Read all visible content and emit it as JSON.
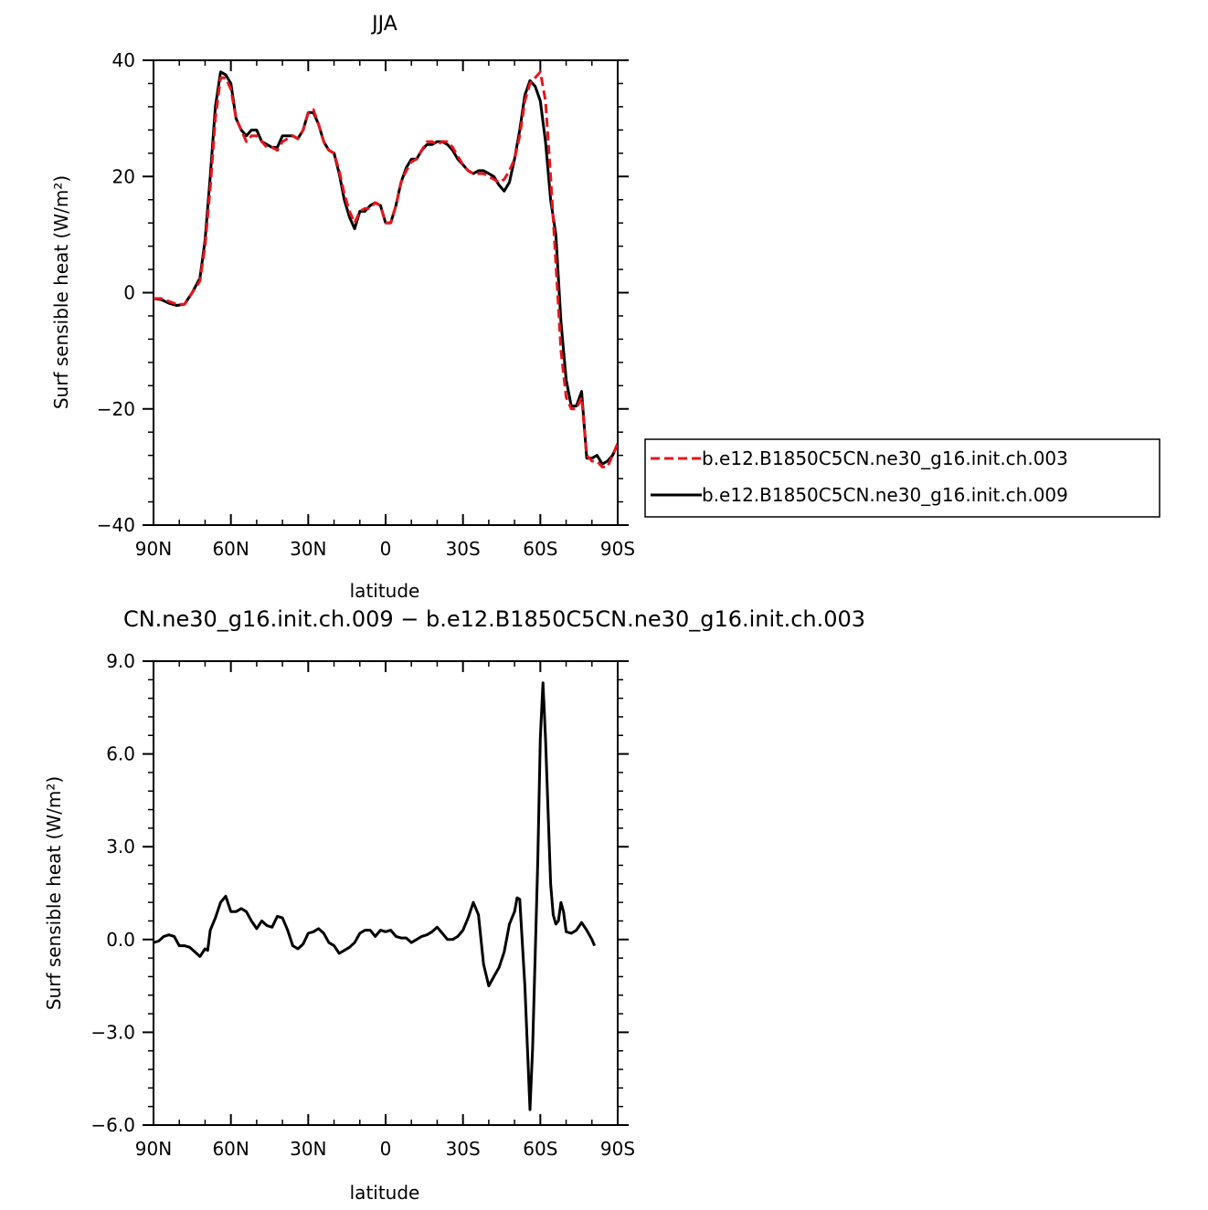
{
  "chart_data": [
    {
      "type": "line",
      "title": "JJA",
      "xlabel": "latitude",
      "ylabel": "Surf sensible heat (W/m²)",
      "xlim": [
        90,
        -90
      ],
      "ylim": [
        -40,
        40
      ],
      "x_ticks": [
        90,
        60,
        30,
        0,
        -30,
        -60,
        -90
      ],
      "x_tick_labels": [
        "90N",
        "60N",
        "30N",
        "0",
        "30S",
        "60S",
        "90S"
      ],
      "y_ticks": [
        -40,
        -20,
        0,
        20,
        40
      ],
      "y_tick_labels": [
        "−40",
        "−20",
        "0",
        "20",
        "40"
      ],
      "legend": {
        "placement": "right",
        "entries": [
          "b.e12.B1850C5CN.ne30_g16.init.ch.003",
          "b.e12.B1850C5CN.ne30_g16.init.ch.009"
        ]
      },
      "series": [
        {
          "name": "b.e12.B1850C5CN.ne30_g16.init.ch.003",
          "color": "#e8141b",
          "style": "dashed",
          "points": [
            [
              90,
              -1
            ],
            [
              87,
              -1
            ],
            [
              84,
              -1.5
            ],
            [
              81,
              -2
            ],
            [
              78,
              -2
            ],
            [
              75,
              0
            ],
            [
              72,
              2
            ],
            [
              70,
              8
            ],
            [
              68,
              18
            ],
            [
              66,
              30
            ],
            [
              64,
              37
            ],
            [
              62,
              37
            ],
            [
              60,
              35
            ],
            [
              58,
              30
            ],
            [
              56,
              28
            ],
            [
              54,
              26
            ],
            [
              52,
              27
            ],
            [
              50,
              27
            ],
            [
              48,
              26
            ],
            [
              46,
              25
            ],
            [
              44,
              25
            ],
            [
              42,
              24.5
            ],
            [
              40,
              26
            ],
            [
              38,
              26.5
            ],
            [
              36,
              27
            ],
            [
              34,
              26.5
            ],
            [
              32,
              28
            ],
            [
              30,
              31
            ],
            [
              28,
              31.5
            ],
            [
              26,
              29
            ],
            [
              24,
              26
            ],
            [
              22,
              24.5
            ],
            [
              20,
              24
            ],
            [
              18,
              21
            ],
            [
              16,
              17
            ],
            [
              14,
              14
            ],
            [
              12,
              12
            ],
            [
              10,
              14
            ],
            [
              8,
              14.5
            ],
            [
              6,
              14.5
            ],
            [
              4,
              15.5
            ],
            [
              2,
              15
            ],
            [
              0,
              12
            ],
            [
              -2,
              12
            ],
            [
              -4,
              15
            ],
            [
              -6,
              19
            ],
            [
              -8,
              21
            ],
            [
              -10,
              22.5
            ],
            [
              -12,
              23
            ],
            [
              -14,
              24.5
            ],
            [
              -16,
              26
            ],
            [
              -18,
              26
            ],
            [
              -20,
              25.5
            ],
            [
              -22,
              26
            ],
            [
              -24,
              26
            ],
            [
              -26,
              25
            ],
            [
              -28,
              23.5
            ],
            [
              -30,
              22
            ],
            [
              -32,
              21
            ],
            [
              -34,
              20.5
            ],
            [
              -36,
              20.5
            ],
            [
              -38,
              20.5
            ],
            [
              -40,
              20
            ],
            [
              -42,
              19.5
            ],
            [
              -44,
              19
            ],
            [
              -46,
              19.5
            ],
            [
              -48,
              21
            ],
            [
              -50,
              23
            ],
            [
              -52,
              27
            ],
            [
              -54,
              33
            ],
            [
              -56,
              36
            ],
            [
              -58,
              37
            ],
            [
              -60,
              38
            ],
            [
              -62,
              33
            ],
            [
              -64,
              20
            ],
            [
              -66,
              5
            ],
            [
              -68,
              -10
            ],
            [
              -70,
              -18
            ],
            [
              -72,
              -20
            ],
            [
              -74,
              -20
            ],
            [
              -76,
              -18
            ],
            [
              -78,
              -28
            ],
            [
              -80,
              -29
            ],
            [
              -82,
              -29
            ],
            [
              -84,
              -30
            ],
            [
              -86,
              -30
            ],
            [
              -88,
              -28
            ],
            [
              -90,
              -26
            ]
          ]
        },
        {
          "name": "b.e12.B1850C5CN.ne30_g16.init.ch.009",
          "color": "#000000",
          "style": "solid",
          "points": [
            [
              90,
              -1
            ],
            [
              87,
              -1.2
            ],
            [
              84,
              -1.8
            ],
            [
              81,
              -2.2
            ],
            [
              78,
              -2
            ],
            [
              75,
              0
            ],
            [
              72,
              2.5
            ],
            [
              70,
              9
            ],
            [
              68,
              20
            ],
            [
              66,
              32
            ],
            [
              64,
              38
            ],
            [
              62,
              37.5
            ],
            [
              60,
              36
            ],
            [
              58,
              30
            ],
            [
              56,
              28
            ],
            [
              54,
              27
            ],
            [
              52,
              28
            ],
            [
              50,
              28
            ],
            [
              48,
              26
            ],
            [
              46,
              25.5
            ],
            [
              44,
              25
            ],
            [
              42,
              25
            ],
            [
              40,
              27
            ],
            [
              38,
              27
            ],
            [
              36,
              27
            ],
            [
              34,
              26.5
            ],
            [
              32,
              28
            ],
            [
              30,
              31
            ],
            [
              28,
              31
            ],
            [
              26,
              29
            ],
            [
              24,
              26
            ],
            [
              22,
              24.5
            ],
            [
              20,
              24
            ],
            [
              18,
              20.5
            ],
            [
              16,
              16
            ],
            [
              14,
              13
            ],
            [
              12,
              11
            ],
            [
              10,
              14
            ],
            [
              8,
              14
            ],
            [
              6,
              15
            ],
            [
              4,
              15.5
            ],
            [
              2,
              15
            ],
            [
              0,
              12
            ],
            [
              -2,
              12
            ],
            [
              -4,
              15
            ],
            [
              -6,
              19
            ],
            [
              -8,
              21.5
            ],
            [
              -10,
              23
            ],
            [
              -12,
              23
            ],
            [
              -14,
              24.5
            ],
            [
              -16,
              25.5
            ],
            [
              -18,
              25.5
            ],
            [
              -20,
              26
            ],
            [
              -22,
              26
            ],
            [
              -24,
              25.5
            ],
            [
              -26,
              24.5
            ],
            [
              -28,
              23
            ],
            [
              -30,
              22
            ],
            [
              -32,
              21
            ],
            [
              -34,
              20.5
            ],
            [
              -36,
              21
            ],
            [
              -38,
              21
            ],
            [
              -40,
              20.5
            ],
            [
              -42,
              20
            ],
            [
              -44,
              18.5
            ],
            [
              -46,
              17.5
            ],
            [
              -48,
              19
            ],
            [
              -50,
              23
            ],
            [
              -52,
              28
            ],
            [
              -54,
              34
            ],
            [
              -56,
              36.5
            ],
            [
              -58,
              35.5
            ],
            [
              -60,
              33
            ],
            [
              -62,
              26
            ],
            [
              -64,
              16
            ],
            [
              -66,
              10
            ],
            [
              -68,
              -5
            ],
            [
              -70,
              -15
            ],
            [
              -72,
              -19.5
            ],
            [
              -74,
              -19.5
            ],
            [
              -76,
              -17
            ],
            [
              -78,
              -28.5
            ],
            [
              -80,
              -28.5
            ],
            [
              -82,
              -28
            ],
            [
              -84,
              -29.5
            ],
            [
              -86,
              -29
            ],
            [
              -88,
              -28
            ],
            [
              -90,
              -26
            ]
          ]
        }
      ]
    },
    {
      "type": "line",
      "title": "CN.ne30_g16.init.ch.009 − b.e12.B1850C5CN.ne30_g16.init.ch.003",
      "xlabel": "latitude",
      "ylabel": "Surf sensible heat (W/m²)",
      "xlim": [
        90,
        -90
      ],
      "ylim": [
        -6,
        9
      ],
      "x_ticks": [
        90,
        60,
        30,
        0,
        -30,
        -60,
        -90
      ],
      "x_tick_labels": [
        "90N",
        "60N",
        "30N",
        "0",
        "30S",
        "60S",
        "90S"
      ],
      "y_ticks": [
        -6,
        -3,
        0,
        3,
        6,
        9
      ],
      "y_tick_labels": [
        "−6.0",
        "−3.0",
        "0.0",
        "3.0",
        "6.0",
        "9.0"
      ],
      "series": [
        {
          "color": "#000000",
          "style": "solid",
          "points": [
            [
              90,
              -0.1
            ],
            [
              88,
              -0.05
            ],
            [
              86,
              0.1
            ],
            [
              84,
              0.15
            ],
            [
              82,
              0.1
            ],
            [
              80,
              -0.2
            ],
            [
              78,
              -0.2
            ],
            [
              76,
              -0.25
            ],
            [
              74,
              -0.4
            ],
            [
              72,
              -0.55
            ],
            [
              70,
              -0.3
            ],
            [
              69,
              -0.35
            ],
            [
              68,
              0.3
            ],
            [
              66,
              0.7
            ],
            [
              64,
              1.2
            ],
            [
              62,
              1.4
            ],
            [
              60,
              0.9
            ],
            [
              58,
              0.9
            ],
            [
              56,
              1.0
            ],
            [
              54,
              0.9
            ],
            [
              52,
              0.6
            ],
            [
              50,
              0.35
            ],
            [
              48,
              0.6
            ],
            [
              46,
              0.45
            ],
            [
              44,
              0.4
            ],
            [
              42,
              0.75
            ],
            [
              40,
              0.7
            ],
            [
              38,
              0.3
            ],
            [
              36,
              -0.2
            ],
            [
              34,
              -0.3
            ],
            [
              32,
              -0.15
            ],
            [
              30,
              0.2
            ],
            [
              28,
              0.25
            ],
            [
              26,
              0.35
            ],
            [
              24,
              0.2
            ],
            [
              22,
              -0.1
            ],
            [
              20,
              -0.2
            ],
            [
              18,
              -0.45
            ],
            [
              16,
              -0.35
            ],
            [
              14,
              -0.25
            ],
            [
              12,
              -0.1
            ],
            [
              10,
              0.2
            ],
            [
              8,
              0.3
            ],
            [
              6,
              0.3
            ],
            [
              4,
              0.1
            ],
            [
              2,
              0.3
            ],
            [
              0,
              0.25
            ],
            [
              -2,
              0.3
            ],
            [
              -4,
              0.1
            ],
            [
              -6,
              0.05
            ],
            [
              -8,
              0.05
            ],
            [
              -10,
              -0.1
            ],
            [
              -12,
              0.0
            ],
            [
              -14,
              0.1
            ],
            [
              -16,
              0.15
            ],
            [
              -18,
              0.25
            ],
            [
              -20,
              0.4
            ],
            [
              -22,
              0.2
            ],
            [
              -24,
              0.0
            ],
            [
              -26,
              0.0
            ],
            [
              -28,
              0.1
            ],
            [
              -30,
              0.3
            ],
            [
              -32,
              0.7
            ],
            [
              -34,
              1.2
            ],
            [
              -36,
              0.8
            ],
            [
              -38,
              -0.8
            ],
            [
              -40,
              -1.5
            ],
            [
              -42,
              -1.2
            ],
            [
              -44,
              -0.9
            ],
            [
              -46,
              -0.4
            ],
            [
              -48,
              0.5
            ],
            [
              -50,
              0.9
            ],
            [
              -51,
              1.35
            ],
            [
              -52,
              1.3
            ],
            [
              -54,
              -1.5
            ],
            [
              -55,
              -3.5
            ],
            [
              -56,
              -5.5
            ],
            [
              -57,
              -3.5
            ],
            [
              -59,
              2.5
            ],
            [
              -60,
              6.5
            ],
            [
              -61,
              8.3
            ],
            [
              -62,
              6.5
            ],
            [
              -64,
              1.8
            ],
            [
              -65,
              0.8
            ],
            [
              -66,
              0.5
            ],
            [
              -67,
              0.6
            ],
            [
              -68,
              1.2
            ],
            [
              -69,
              0.9
            ],
            [
              -70,
              0.25
            ],
            [
              -72,
              0.2
            ],
            [
              -74,
              0.3
            ],
            [
              -76,
              0.55
            ],
            [
              -78,
              0.3
            ],
            [
              -80,
              0.0
            ],
            [
              -81,
              -0.2
            ]
          ]
        }
      ]
    }
  ]
}
